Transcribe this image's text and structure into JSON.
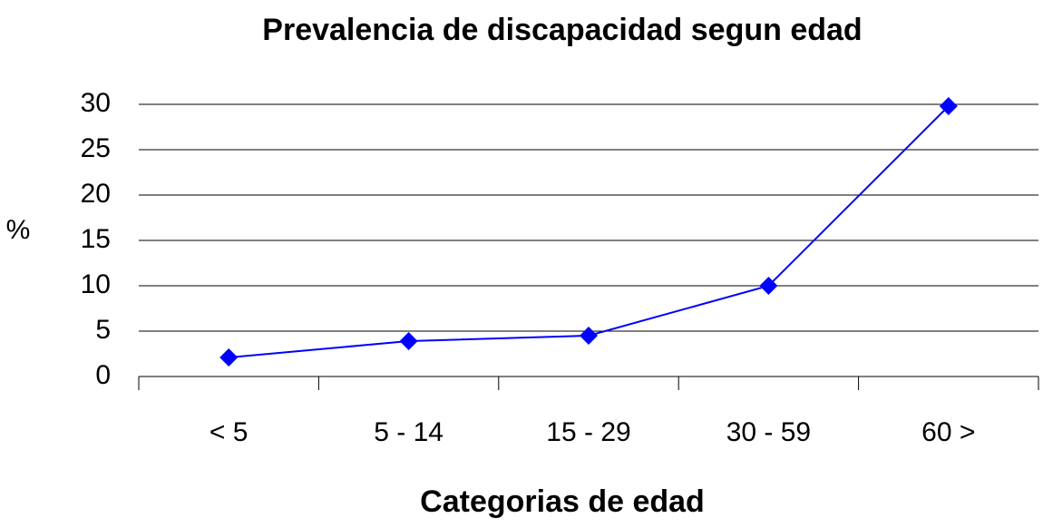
{
  "chart_data": {
    "type": "line",
    "title": "Prevalencia de discapacidad segun edad",
    "x_label": "Categorias de edad",
    "y_label": "%",
    "categories": [
      "< 5",
      "5 - 14",
      "15 - 29",
      "30 - 59",
      "60 >"
    ],
    "values": [
      2.1,
      3.9,
      4.5,
      10,
      29.8
    ],
    "color": "#0000ff",
    "ylim": [
      0,
      30
    ],
    "yticks": [
      0,
      5,
      10,
      15,
      20,
      25,
      30
    ],
    "grid": true
  }
}
